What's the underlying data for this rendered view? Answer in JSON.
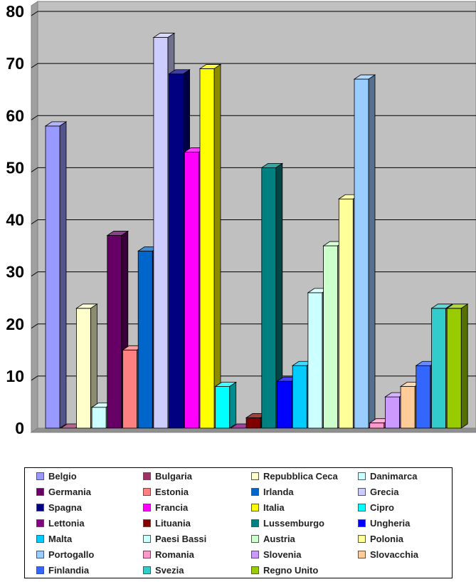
{
  "chart_data": {
    "type": "bar",
    "style": "3d-column",
    "ylim": [
      0,
      80
    ],
    "yticks": [
      0,
      10,
      20,
      30,
      40,
      50,
      60,
      70,
      80
    ],
    "grid": true,
    "legend_position": "bottom",
    "colors": {
      "wall": "#c0c0c0",
      "gridline": "#000000"
    },
    "categories": [
      "Belgio",
      "Bulgaria",
      "Repubblica Ceca",
      "Danimarca",
      "Germania",
      "Estonia",
      "Irlanda",
      "Grecia",
      "Spagna",
      "Francia",
      "Italia",
      "Cipro",
      "Lettonia",
      "Lituania",
      "Lussemburgo",
      "Ungheria",
      "Malta",
      "Paesi Bassi",
      "Austria",
      "Polonia",
      "Portogallo",
      "Romania",
      "Slovenia",
      "Slovacchia",
      "Finlandia",
      "Svezia",
      "Regno Unito"
    ],
    "series": [
      {
        "name": "Belgio",
        "value": 58,
        "color": "#9999ff"
      },
      {
        "name": "Bulgaria",
        "value": 0,
        "color": "#993366"
      },
      {
        "name": "Repubblica Ceca",
        "value": 23,
        "color": "#ffffcc"
      },
      {
        "name": "Danimarca",
        "value": 4,
        "color": "#ccffff"
      },
      {
        "name": "Germania",
        "value": 37,
        "color": "#660066"
      },
      {
        "name": "Estonia",
        "value": 15,
        "color": "#ff8080"
      },
      {
        "name": "Irlanda",
        "value": 34,
        "color": "#0066cc"
      },
      {
        "name": "Grecia",
        "value": 75,
        "color": "#ccccff"
      },
      {
        "name": "Spagna",
        "value": 68,
        "color": "#000080"
      },
      {
        "name": "Francia",
        "value": 53,
        "color": "#ff00ff"
      },
      {
        "name": "Italia",
        "value": 69,
        "color": "#ffff00"
      },
      {
        "name": "Cipro",
        "value": 8,
        "color": "#00ffff"
      },
      {
        "name": "Lettonia",
        "value": 0,
        "color": "#800080"
      },
      {
        "name": "Lituania",
        "value": 2,
        "color": "#800000"
      },
      {
        "name": "Lussemburgo",
        "value": 50,
        "color": "#008080"
      },
      {
        "name": "Ungheria",
        "value": 9,
        "color": "#0000ff"
      },
      {
        "name": "Malta",
        "value": 12,
        "color": "#00ccff"
      },
      {
        "name": "Paesi Bassi",
        "value": 26,
        "color": "#ccffff"
      },
      {
        "name": "Austria",
        "value": 35,
        "color": "#ccffcc"
      },
      {
        "name": "Polonia",
        "value": 44,
        "color": "#ffff99"
      },
      {
        "name": "Portogallo",
        "value": 67,
        "color": "#99ccff"
      },
      {
        "name": "Romania",
        "value": 1,
        "color": "#ff99cc"
      },
      {
        "name": "Slovenia",
        "value": 6,
        "color": "#cc99ff"
      },
      {
        "name": "Slovacchia",
        "value": 8,
        "color": "#ffcc99"
      },
      {
        "name": "Finlandia",
        "value": 12,
        "color": "#3366ff"
      },
      {
        "name": "Svezia",
        "value": 23,
        "color": "#33cccc"
      },
      {
        "name": "Regno Unito",
        "value": 23,
        "color": "#99cc00"
      }
    ]
  }
}
